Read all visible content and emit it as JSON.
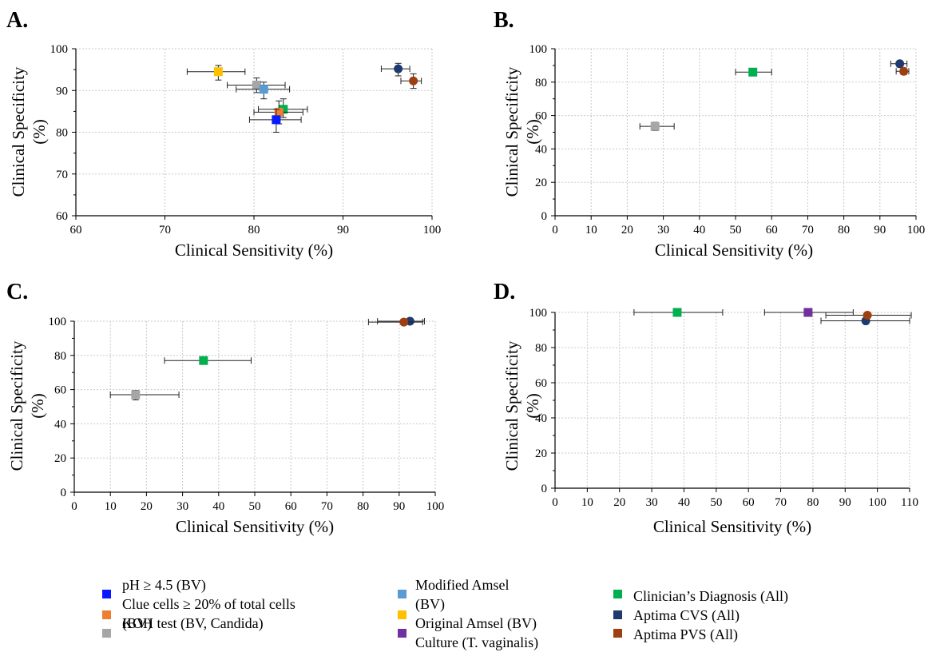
{
  "colors": {
    "ph": "#0a1aff",
    "clue": "#ee7d31",
    "koh": "#a6a6a6",
    "modified_amsel": "#5b9bd5",
    "original_amsel": "#ffc000",
    "culture": "#7030a0",
    "clinician": "#00b050",
    "aptima_cvs": "#1f3a6e",
    "aptima_pvs": "#9e3f0f"
  },
  "legend": {
    "items": [
      {
        "key": "ph",
        "marker": "square",
        "line1": "pH ≥ 4.5 (BV)",
        "line2": ""
      },
      {
        "key": "clue",
        "marker": "square",
        "line1": "Clue cells ≥ 20% of total cells",
        "line2": "(BV)"
      },
      {
        "key": "koh",
        "marker": "square",
        "line1": "",
        "line2": "KOH test (BV, Candida)"
      },
      {
        "key": "modified_amsel",
        "marker": "square",
        "line1": "Modified Amsel",
        "line2": "(BV)"
      },
      {
        "key": "original_amsel",
        "marker": "square",
        "line1": "Original Amsel (BV)",
        "line2": ""
      },
      {
        "key": "culture",
        "marker": "square",
        "line1": "Culture (T. vaginalis)",
        "line2": ""
      },
      {
        "key": "clinician",
        "marker": "square",
        "line1": "Clinician’s Diagnosis (All)",
        "line2": ""
      },
      {
        "key": "aptima_cvs",
        "marker": "circle",
        "line1": "Aptima CVS (All)",
        "line2": ""
      },
      {
        "key": "aptima_pvs",
        "marker": "circle",
        "line1": "Aptima PVS (All)",
        "line2": ""
      }
    ]
  },
  "chart_data": [
    {
      "panel": "A.",
      "type": "scatter",
      "xlabel": "Clinical Sensitivity (%)",
      "ylabel": "Clinical Specificity (%)",
      "xlim": [
        60,
        100
      ],
      "ylim": [
        60,
        100
      ],
      "xticks": [
        60,
        70,
        80,
        90,
        100
      ],
      "yticks": [
        60,
        70,
        80,
        90,
        100
      ],
      "grid": true,
      "points": [
        {
          "key": "original_amsel",
          "marker": "square",
          "x": 76.0,
          "y": 94.5,
          "xerr": [
            72.5,
            79.0
          ],
          "yerr": [
            92.5,
            96.0
          ]
        },
        {
          "key": "koh",
          "marker": "square",
          "x": 80.3,
          "y": 91.3,
          "xerr": [
            77.0,
            83.5
          ],
          "yerr": [
            89.5,
            93.0
          ]
        },
        {
          "key": "modified_amsel",
          "marker": "square",
          "x": 81.1,
          "y": 90.3,
          "xerr": [
            78.0,
            84.0
          ],
          "yerr": [
            88.0,
            92.0
          ]
        },
        {
          "key": "clinician",
          "marker": "square",
          "x": 83.3,
          "y": 85.5,
          "xerr": [
            80.5,
            86.0
          ],
          "yerr": [
            83.5,
            88.0
          ]
        },
        {
          "key": "clue",
          "marker": "square",
          "x": 82.8,
          "y": 84.8,
          "xerr": [
            80.0,
            85.5
          ],
          "yerr": [
            82.0,
            87.5
          ]
        },
        {
          "key": "ph",
          "marker": "square",
          "x": 82.5,
          "y": 83.0,
          "xerr": [
            79.5,
            85.3
          ],
          "yerr": [
            80.0,
            85.5
          ]
        },
        {
          "key": "aptima_cvs",
          "marker": "circle",
          "x": 96.2,
          "y": 95.2,
          "xerr": [
            94.3,
            97.5
          ],
          "yerr": [
            93.5,
            96.5
          ]
        },
        {
          "key": "aptima_pvs",
          "marker": "circle",
          "x": 97.9,
          "y": 92.3,
          "xerr": [
            96.5,
            98.8
          ],
          "yerr": [
            90.5,
            94.0
          ]
        }
      ]
    },
    {
      "panel": "B.",
      "type": "scatter",
      "xlabel": "Clinical Sensitivity (%)",
      "ylabel": "Clinical Specificity (%)",
      "xlim": [
        0,
        100
      ],
      "ylim": [
        0,
        100
      ],
      "xticks": [
        0,
        10,
        20,
        30,
        40,
        50,
        60,
        70,
        80,
        90,
        100
      ],
      "yticks": [
        0,
        20,
        40,
        60,
        80,
        100
      ],
      "grid": true,
      "points": [
        {
          "key": "koh",
          "marker": "square",
          "x": 27.7,
          "y": 53.5,
          "xerr": [
            23.5,
            33.0
          ],
          "yerr": [
            51.0,
            56.0
          ]
        },
        {
          "key": "clinician",
          "marker": "square",
          "x": 54.8,
          "y": 86.0,
          "xerr": [
            50.0,
            60.0
          ],
          "yerr": [
            84.0,
            88.0
          ]
        },
        {
          "key": "aptima_cvs",
          "marker": "circle",
          "x": 95.5,
          "y": 91.0,
          "xerr": [
            93.0,
            97.5
          ],
          "yerr": [
            89.0,
            92.5
          ]
        },
        {
          "key": "aptima_pvs",
          "marker": "circle",
          "x": 96.6,
          "y": 86.5,
          "xerr": [
            94.5,
            98.0
          ],
          "yerr": [
            84.5,
            88.5
          ]
        }
      ]
    },
    {
      "panel": "C.",
      "type": "scatter",
      "xlabel": "Clinical Sensitivity (%)",
      "ylabel": "Clinical Specificity (%)",
      "xlim": [
        0,
        100
      ],
      "ylim": [
        0,
        100
      ],
      "xticks": [
        0,
        10,
        20,
        30,
        40,
        50,
        60,
        70,
        80,
        90,
        100
      ],
      "yticks": [
        0,
        20,
        40,
        60,
        80,
        100
      ],
      "grid": true,
      "points": [
        {
          "key": "koh",
          "marker": "square",
          "x": 17.0,
          "y": 57.0,
          "xerr": [
            10.0,
            29.0
          ],
          "yerr": [
            54.0,
            59.5
          ]
        },
        {
          "key": "clinician",
          "marker": "square",
          "x": 35.8,
          "y": 77.0,
          "xerr": [
            25.0,
            49.0
          ],
          "yerr": [
            75.5,
            78.5
          ]
        },
        {
          "key": "aptima_cvs",
          "marker": "circle",
          "x": 93.0,
          "y": 100.0,
          "xerr": [
            84.0,
            97.0
          ],
          "yerr": [
            99.0,
            100.0
          ]
        },
        {
          "key": "aptima_pvs",
          "marker": "circle",
          "x": 91.3,
          "y": 99.5,
          "xerr": [
            81.5,
            96.5
          ],
          "yerr": [
            98.5,
            100.0
          ]
        }
      ]
    },
    {
      "panel": "D.",
      "type": "scatter",
      "xlabel": "Clinical Sensitivity (%)",
      "ylabel": "Clinical Specificity (%)",
      "xlim": [
        0,
        110
      ],
      "ylim": [
        0,
        100
      ],
      "xticks": [
        0,
        10,
        20,
        30,
        40,
        50,
        60,
        70,
        80,
        90,
        100,
        110
      ],
      "yticks": [
        0,
        20,
        40,
        60,
        80,
        100
      ],
      "grid": true,
      "points": [
        {
          "key": "clinician",
          "marker": "square",
          "x": 37.9,
          "y": 100.0,
          "xerr": [
            24.5,
            52.0
          ],
          "yerr": [
            100.0,
            100.0
          ]
        },
        {
          "key": "culture",
          "marker": "square",
          "x": 78.5,
          "y": 100.0,
          "xerr": [
            65.0,
            92.5
          ],
          "yerr": [
            100.0,
            100.0
          ]
        },
        {
          "key": "aptima_cvs",
          "marker": "circle",
          "x": 96.4,
          "y": 95.2,
          "xerr": [
            82.5,
            110.0
          ],
          "yerr": [
            95.2,
            95.2
          ]
        },
        {
          "key": "aptima_pvs",
          "marker": "circle",
          "x": 96.9,
          "y": 98.4,
          "xerr": [
            84.0,
            110.5
          ],
          "yerr": [
            98.4,
            98.4
          ]
        }
      ]
    }
  ]
}
